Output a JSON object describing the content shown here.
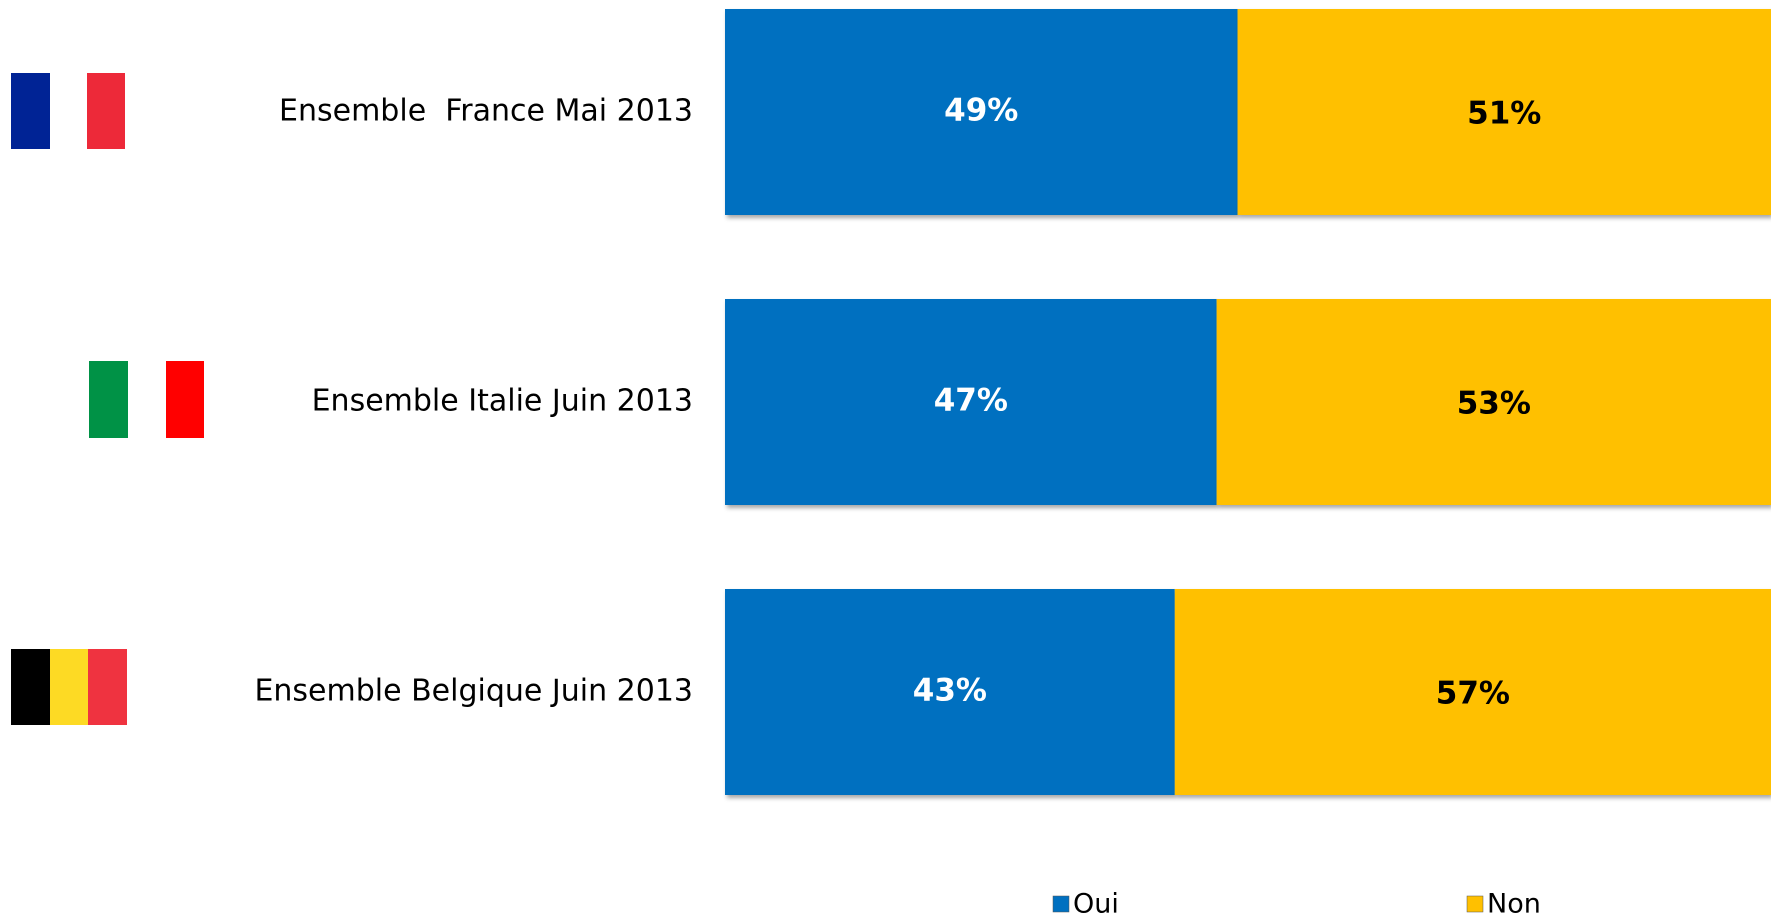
{
  "chart_data": {
    "type": "stacked-bar-horizontal",
    "categories": [
      "Ensemble  France Mai 2013",
      "Ensemble Italie Juin 2013",
      "Ensemble Belgique Juin 2013"
    ],
    "series": [
      {
        "name": "Oui",
        "color": "#0070c0",
        "values": [
          49,
          47,
          43
        ],
        "value_labels": [
          "49%",
          "47%",
          "43%"
        ],
        "label_color": "#ffffff"
      },
      {
        "name": "Non",
        "color": "#ffc000",
        "values": [
          51,
          53,
          57
        ],
        "value_labels": [
          "51%",
          "53%",
          "57%"
        ],
        "label_color": "#000000"
      }
    ],
    "xlim": [
      0,
      100
    ],
    "legend": "bottom"
  }
}
